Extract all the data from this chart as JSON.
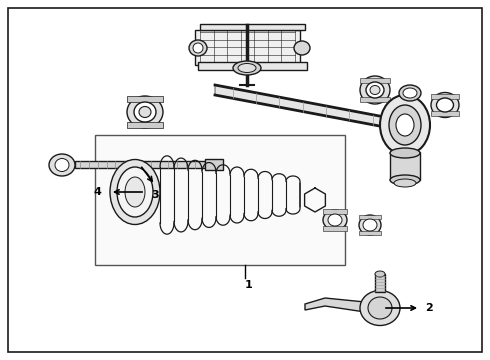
{
  "background_color": "#ffffff",
  "border_color": "#000000",
  "border_linewidth": 1.2,
  "figure_width": 4.9,
  "figure_height": 3.6,
  "dpi": 100,
  "text_color": "#000000",
  "line_color": "#1a1a1a",
  "callout_fontsize": 8,
  "callout_fontweight": "bold",
  "gray_light": "#cccccc",
  "gray_mid": "#888888",
  "gray_dark": "#333333"
}
